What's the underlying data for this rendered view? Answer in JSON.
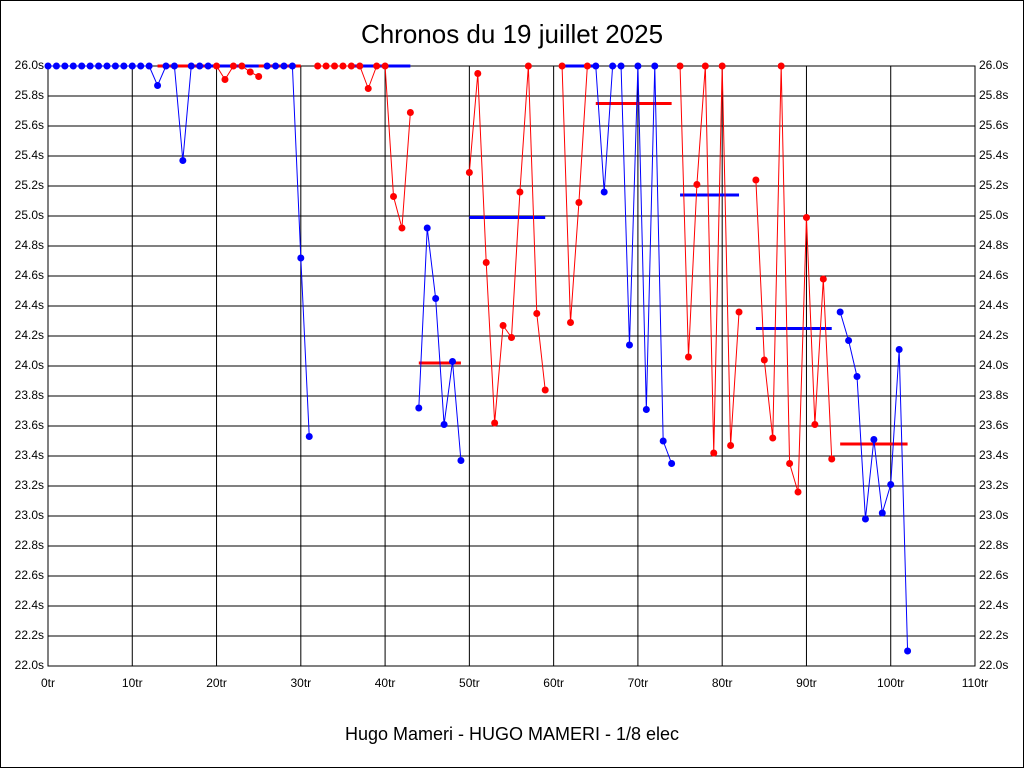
{
  "chart_data": {
    "type": "line",
    "title": "Chronos du 19 juillet 2025",
    "footer": "Hugo Mameri - HUGO MAMERI - 1/8 elec",
    "xlim": [
      0,
      110
    ],
    "xticks": [
      {
        "value": 0,
        "label": "0tr"
      },
      {
        "value": 10,
        "label": "10tr"
      },
      {
        "value": 20,
        "label": "20tr"
      },
      {
        "value": 30,
        "label": "30tr"
      },
      {
        "value": 40,
        "label": "40tr"
      },
      {
        "value": 50,
        "label": "50tr"
      },
      {
        "value": 60,
        "label": "60tr"
      },
      {
        "value": 70,
        "label": "70tr"
      },
      {
        "value": 80,
        "label": "80tr"
      },
      {
        "value": 90,
        "label": "90tr"
      },
      {
        "value": 100,
        "label": "100tr"
      },
      {
        "value": 110,
        "label": "110tr"
      }
    ],
    "ylim": [
      22.0,
      26.0
    ],
    "yticks": [
      {
        "value": 22.0,
        "label": "22.0s"
      },
      {
        "value": 22.2,
        "label": "22.2s"
      },
      {
        "value": 22.4,
        "label": "22.4s"
      },
      {
        "value": 22.6,
        "label": "22.6s"
      },
      {
        "value": 22.8,
        "label": "22.8s"
      },
      {
        "value": 23.0,
        "label": "23.0s"
      },
      {
        "value": 23.2,
        "label": "23.2s"
      },
      {
        "value": 23.4,
        "label": "23.4s"
      },
      {
        "value": 23.6,
        "label": "23.6s"
      },
      {
        "value": 23.8,
        "label": "23.8s"
      },
      {
        "value": 24.0,
        "label": "24.0s"
      },
      {
        "value": 24.2,
        "label": "24.2s"
      },
      {
        "value": 24.4,
        "label": "24.4s"
      },
      {
        "value": 24.6,
        "label": "24.6s"
      },
      {
        "value": 24.8,
        "label": "24.8s"
      },
      {
        "value": 25.0,
        "label": "25.0s"
      },
      {
        "value": 25.2,
        "label": "25.2s"
      },
      {
        "value": 25.4,
        "label": "25.4s"
      },
      {
        "value": 25.6,
        "label": "25.6s"
      },
      {
        "value": 25.8,
        "label": "25.8s"
      },
      {
        "value": 26.0,
        "label": "26.0s"
      }
    ],
    "grid": true,
    "series": [
      {
        "color": "#0000ff",
        "x": [
          0,
          1,
          2,
          3,
          4,
          5,
          6,
          7,
          8,
          9,
          10,
          11,
          12,
          13,
          14,
          15,
          16,
          17,
          18,
          19
        ],
        "values": [
          26,
          26,
          26,
          26,
          26,
          26,
          26,
          26,
          26,
          26,
          26,
          26,
          26,
          25.87,
          26,
          26,
          25.37,
          26,
          26,
          26
        ]
      },
      {
        "color": "#ff0000",
        "x": [
          20,
          21,
          22,
          23,
          24,
          25
        ],
        "values": [
          26,
          25.91,
          26,
          26,
          25.96,
          25.93
        ]
      },
      {
        "color": "#0000ff",
        "x": [
          26,
          27,
          28,
          29,
          30,
          31
        ],
        "values": [
          26,
          26,
          26,
          26,
          24.72,
          23.53
        ]
      },
      {
        "color": "#ff0000",
        "x": [
          32,
          33,
          34,
          35,
          36,
          37,
          38,
          39,
          40,
          41,
          42,
          43
        ],
        "values": [
          26,
          26,
          26,
          26,
          26,
          26,
          25.85,
          26,
          26,
          25.13,
          24.92,
          25.69
        ]
      },
      {
        "color": "#0000ff",
        "x": [
          44,
          45,
          46,
          47,
          48,
          49
        ],
        "values": [
          23.72,
          24.92,
          24.45,
          23.61,
          24.03,
          23.37
        ]
      },
      {
        "color": "#ff0000",
        "x": [
          50,
          51,
          52,
          53,
          54,
          55,
          56,
          57,
          58,
          59
        ],
        "values": [
          25.29,
          25.95,
          24.69,
          23.62,
          24.27,
          24.19,
          25.16,
          26,
          24.35,
          23.84
        ]
      },
      {
        "color": "#ff0000",
        "x": [
          61,
          62,
          63,
          64
        ],
        "values": [
          26,
          24.29,
          25.09,
          26
        ]
      },
      {
        "color": "#0000ff",
        "x": [
          65,
          66,
          67,
          68,
          69,
          70,
          71,
          72,
          73,
          74
        ],
        "values": [
          26,
          25.16,
          26,
          26,
          24.14,
          26,
          23.71,
          26,
          23.5,
          23.35
        ]
      },
      {
        "color": "#ff0000",
        "x": [
          75,
          76,
          77,
          78,
          79,
          80,
          81,
          82
        ],
        "values": [
          26,
          24.06,
          25.21,
          26,
          23.42,
          26,
          23.47,
          24.36
        ]
      },
      {
        "color": "#ff0000",
        "x": [
          84,
          85,
          86,
          87,
          88,
          89,
          90,
          91,
          92,
          93
        ],
        "values": [
          25.24,
          24.04,
          23.52,
          26,
          23.35,
          23.16,
          24.99,
          23.61,
          24.58,
          23.38
        ]
      },
      {
        "color": "#0000ff",
        "x": [
          94,
          95,
          96,
          97,
          98,
          99,
          100,
          101,
          102
        ],
        "values": [
          24.36,
          24.17,
          23.93,
          22.98,
          23.51,
          23.02,
          23.21,
          24.11,
          22.1
        ]
      }
    ],
    "averages": [
      {
        "color": "#ff0000",
        "x": [
          13,
          30
        ],
        "value": 26
      },
      {
        "color": "#0000ff",
        "x": [
          19,
          25
        ],
        "value": 26
      },
      {
        "color": "#0000ff",
        "x": [
          36,
          43
        ],
        "value": 26
      },
      {
        "color": "#ff0000",
        "x": [
          44,
          49
        ],
        "value": 24.02
      },
      {
        "color": "#0000ff",
        "x": [
          50,
          59
        ],
        "value": 24.99
      },
      {
        "color": "#0000ff",
        "x": [
          61,
          65
        ],
        "value": 26
      },
      {
        "color": "#ff0000",
        "x": [
          65,
          74
        ],
        "value": 25.75
      },
      {
        "color": "#0000ff",
        "x": [
          75,
          82
        ],
        "value": 25.14
      },
      {
        "color": "#0000ff",
        "x": [
          84,
          93
        ],
        "value": 24.25
      },
      {
        "color": "#ff0000",
        "x": [
          94,
          102
        ],
        "value": 23.48
      }
    ]
  }
}
